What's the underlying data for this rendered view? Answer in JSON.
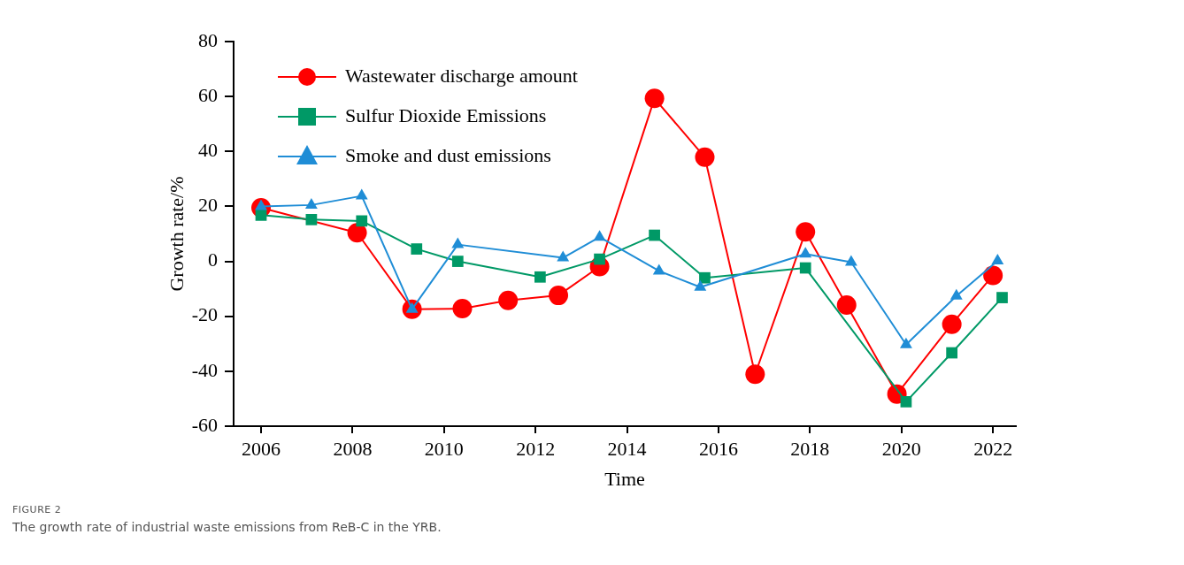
{
  "chart_data": {
    "type": "line",
    "xlabel": "Time",
    "ylabel": "Growth rate/%",
    "xlim": [
      2005.4,
      2022.5
    ],
    "xticks": [
      2006,
      2008,
      2010,
      2012,
      2014,
      2016,
      2018,
      2020,
      2022
    ],
    "ylim": [
      -60,
      80
    ],
    "yticks": [
      -60,
      -40,
      -20,
      0,
      20,
      40,
      60,
      80
    ],
    "grid": false,
    "legend": "top left",
    "line_style": "solid",
    "series": [
      {
        "name": "Wastewater discharge amount",
        "color": "#ff0000",
        "marker": "circle",
        "x": [
          2006,
          2008.1,
          2009.3,
          2010.4,
          2011.4,
          2012.5,
          2013.4,
          2014.6,
          2015.7,
          2016.8,
          2017.9,
          2018.8,
          2019.9,
          2021.1,
          2022
        ],
        "values": [
          19.5,
          10.4,
          -17.4,
          -17.2,
          -14.2,
          -12.4,
          -1.9,
          59.3,
          37.9,
          -41.1,
          10.7,
          -15.9,
          -48.3,
          -22.9,
          -5.1
        ]
      },
      {
        "name": "Sulfur Dioxide Emissions",
        "color": "#009966",
        "marker": "square",
        "x": [
          2006,
          2007.1,
          2008.2,
          2009.4,
          2010.3,
          2012.1,
          2013.4,
          2014.6,
          2015.7,
          2017.9,
          2020.1,
          2021.1,
          2022.2
        ],
        "values": [
          16.8,
          15.2,
          14.7,
          4.5,
          0,
          -5.7,
          0.8,
          9.5,
          -6.0,
          -2.4,
          -51.1,
          -33.3,
          -13.2
        ]
      },
      {
        "name": "Smoke and dust emissions",
        "color": "#1f8dd6",
        "marker": "triangle",
        "x": [
          2006,
          2007.1,
          2008.2,
          2009.3,
          2010.3,
          2012.6,
          2013.4,
          2014.7,
          2015.6,
          2017.9,
          2018.9,
          2020.1,
          2021.2,
          2022.1
        ],
        "values": [
          20.0,
          20.5,
          23.8,
          -17.4,
          6.1,
          1.3,
          8.8,
          -3.5,
          -9.4,
          2.7,
          -0.3,
          -30.3,
          -12.6,
          0.2
        ]
      }
    ],
    "annotations": [
      "FIGURE 2",
      "The growth rate of industrial waste emissions from ReB-C in the YRB."
    ]
  }
}
